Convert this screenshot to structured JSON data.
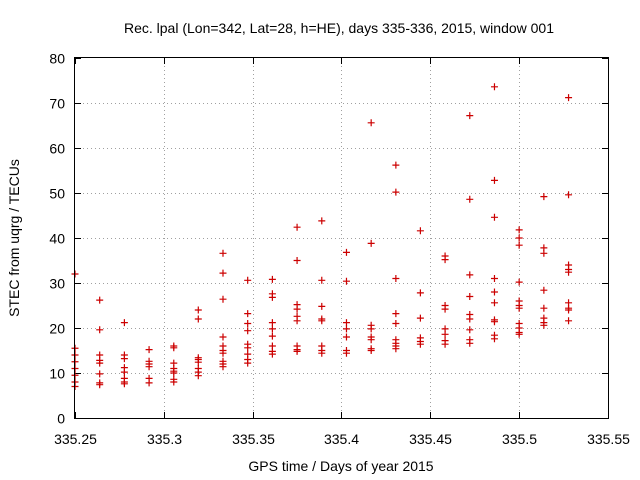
{
  "chart_data": {
    "type": "scatter",
    "title": "Rec. lpal (Lon=342, Lat=28, h=HE), days 335-336, 2015, window 001",
    "xlabel": "GPS time / Days of year 2015",
    "ylabel": "STEC from uqrg / TECUs",
    "xlim": [
      335.25,
      335.55
    ],
    "ylim": [
      0,
      80
    ],
    "xticks": [
      335.25,
      335.3,
      335.35,
      335.4,
      335.45,
      335.5,
      335.55
    ],
    "xtick_labels": [
      "335.25",
      "335.3",
      "335.35",
      "335.4",
      "335.45",
      "335.5",
      "335.55"
    ],
    "yticks": [
      0,
      10,
      20,
      30,
      40,
      50,
      60,
      70,
      80
    ],
    "ytick_labels": [
      "0",
      "10",
      "20",
      "30",
      "40",
      "50",
      "60",
      "70",
      "80"
    ],
    "grid": true,
    "marker": "+",
    "color": "#cc0000",
    "series": [
      {
        "name": "STEC",
        "points": [
          [
            335.25,
            32
          ],
          [
            335.25,
            15.5
          ],
          [
            335.25,
            14
          ],
          [
            335.25,
            12.5
          ],
          [
            335.25,
            11
          ],
          [
            335.25,
            9.5
          ],
          [
            335.25,
            8
          ],
          [
            335.25,
            7
          ],
          [
            335.2639,
            26.2
          ],
          [
            335.2639,
            19.6
          ],
          [
            335.2639,
            14
          ],
          [
            335.2639,
            12.8
          ],
          [
            335.2639,
            12.2
          ],
          [
            335.2639,
            9.8
          ],
          [
            335.2639,
            7.8
          ],
          [
            335.2639,
            7.4
          ],
          [
            335.2778,
            21.2
          ],
          [
            335.2778,
            14
          ],
          [
            335.2778,
            13.2
          ],
          [
            335.2778,
            11.2
          ],
          [
            335.2778,
            10.2
          ],
          [
            335.2778,
            8.8
          ],
          [
            335.2778,
            8
          ],
          [
            335.2778,
            7.6
          ],
          [
            335.2917,
            15.2
          ],
          [
            335.2917,
            12.6
          ],
          [
            335.2917,
            12
          ],
          [
            335.2917,
            11.4
          ],
          [
            335.2917,
            8.8
          ],
          [
            335.2917,
            7.8
          ],
          [
            335.3056,
            16
          ],
          [
            335.3056,
            15.6
          ],
          [
            335.3056,
            12.2
          ],
          [
            335.3056,
            11
          ],
          [
            335.3056,
            10.4
          ],
          [
            335.3056,
            10
          ],
          [
            335.3056,
            8.6
          ],
          [
            335.3056,
            8
          ],
          [
            335.3194,
            24
          ],
          [
            335.3194,
            22
          ],
          [
            335.3194,
            13.4
          ],
          [
            335.3194,
            13
          ],
          [
            335.3194,
            12.4
          ],
          [
            335.3194,
            11
          ],
          [
            335.3194,
            10.2
          ],
          [
            335.3194,
            9.4
          ],
          [
            335.3333,
            36.6
          ],
          [
            335.3333,
            32.2
          ],
          [
            335.3333,
            26.4
          ],
          [
            335.3333,
            18
          ],
          [
            335.3333,
            16
          ],
          [
            335.3333,
            15
          ],
          [
            335.3333,
            14.4
          ],
          [
            335.3333,
            12.6
          ],
          [
            335.3333,
            12
          ],
          [
            335.3333,
            11.4
          ],
          [
            335.3472,
            30.6
          ],
          [
            335.3472,
            23.2
          ],
          [
            335.3472,
            21
          ],
          [
            335.3472,
            19.4
          ],
          [
            335.3472,
            16.4
          ],
          [
            335.3472,
            15.6
          ],
          [
            335.3472,
            14.2
          ],
          [
            335.3472,
            13
          ],
          [
            335.3472,
            12.2
          ],
          [
            335.3611,
            30.8
          ],
          [
            335.3611,
            27.6
          ],
          [
            335.3611,
            26.8
          ],
          [
            335.3611,
            21.2
          ],
          [
            335.3611,
            19.8
          ],
          [
            335.3611,
            18.2
          ],
          [
            335.3611,
            16
          ],
          [
            335.3611,
            14.8
          ],
          [
            335.3611,
            14.2
          ],
          [
            335.375,
            42.4
          ],
          [
            335.375,
            35
          ],
          [
            335.375,
            25.2
          ],
          [
            335.375,
            24.2
          ],
          [
            335.375,
            22.6
          ],
          [
            335.375,
            21.6
          ],
          [
            335.375,
            16
          ],
          [
            335.375,
            15.2
          ],
          [
            335.375,
            14.8
          ],
          [
            335.3889,
            43.8
          ],
          [
            335.3889,
            30.6
          ],
          [
            335.3889,
            24.8
          ],
          [
            335.3889,
            22
          ],
          [
            335.3889,
            21.6
          ],
          [
            335.3889,
            16
          ],
          [
            335.3889,
            15
          ],
          [
            335.3889,
            14.4
          ],
          [
            335.4028,
            36.8
          ],
          [
            335.4028,
            30.4
          ],
          [
            335.4028,
            21.2
          ],
          [
            335.4028,
            19.8
          ],
          [
            335.4028,
            18
          ],
          [
            335.4028,
            15
          ],
          [
            335.4028,
            14.4
          ],
          [
            335.4167,
            65.6
          ],
          [
            335.4167,
            38.8
          ],
          [
            335.4167,
            20.6
          ],
          [
            335.4167,
            19.8
          ],
          [
            335.4167,
            18
          ],
          [
            335.4167,
            17.4
          ],
          [
            335.4167,
            15.4
          ],
          [
            335.4167,
            15
          ],
          [
            335.4306,
            56.2
          ],
          [
            335.4306,
            50.2
          ],
          [
            335.4306,
            31
          ],
          [
            335.4306,
            23.2
          ],
          [
            335.4306,
            21
          ],
          [
            335.4306,
            17.4
          ],
          [
            335.4306,
            16.6
          ],
          [
            335.4306,
            16
          ],
          [
            335.4306,
            15.4
          ],
          [
            335.4444,
            41.6
          ],
          [
            335.4444,
            27.8
          ],
          [
            335.4444,
            22.2
          ],
          [
            335.4444,
            17.8
          ],
          [
            335.4444,
            17
          ],
          [
            335.4444,
            16.4
          ],
          [
            335.4583,
            36
          ],
          [
            335.4583,
            35.2
          ],
          [
            335.4583,
            25
          ],
          [
            335.4583,
            24.2
          ],
          [
            335.4583,
            19.8
          ],
          [
            335.4583,
            18.6
          ],
          [
            335.4583,
            17.2
          ],
          [
            335.4583,
            16.4
          ],
          [
            335.4722,
            67.2
          ],
          [
            335.4722,
            48.6
          ],
          [
            335.4722,
            31.8
          ],
          [
            335.4722,
            27
          ],
          [
            335.4722,
            23
          ],
          [
            335.4722,
            22
          ],
          [
            335.4722,
            19.6
          ],
          [
            335.4722,
            17.4
          ],
          [
            335.4722,
            16.6
          ],
          [
            335.4861,
            73.6
          ],
          [
            335.4861,
            52.8
          ],
          [
            335.4861,
            44.6
          ],
          [
            335.4861,
            31
          ],
          [
            335.4861,
            28
          ],
          [
            335.4861,
            25.6
          ],
          [
            335.4861,
            21.8
          ],
          [
            335.4861,
            21.4
          ],
          [
            335.4861,
            18.4
          ],
          [
            335.4861,
            17.6
          ],
          [
            335.5,
            41.8
          ],
          [
            335.5,
            40
          ],
          [
            335.5,
            38.4
          ],
          [
            335.5,
            30.2
          ],
          [
            335.5,
            26
          ],
          [
            335.5,
            25
          ],
          [
            335.5,
            24.4
          ],
          [
            335.5,
            21
          ],
          [
            335.5,
            20
          ],
          [
            335.5,
            19
          ],
          [
            335.5,
            18.6
          ],
          [
            335.5139,
            49.2
          ],
          [
            335.5139,
            37.8
          ],
          [
            335.5139,
            36.6
          ],
          [
            335.5139,
            28.4
          ],
          [
            335.5139,
            24.4
          ],
          [
            335.5139,
            22.2
          ],
          [
            335.5139,
            21.2
          ],
          [
            335.5139,
            20.6
          ],
          [
            335.5278,
            71.2
          ],
          [
            335.5278,
            49.6
          ],
          [
            335.5278,
            34
          ],
          [
            335.5278,
            33
          ],
          [
            335.5278,
            32.4
          ],
          [
            335.5278,
            25.6
          ],
          [
            335.5278,
            24.4
          ],
          [
            335.5278,
            24
          ],
          [
            335.5278,
            21.6
          ]
        ]
      }
    ]
  }
}
